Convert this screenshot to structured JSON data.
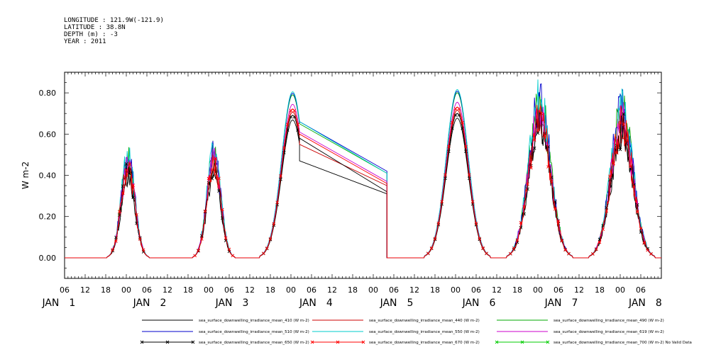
{
  "header": {
    "longitude": "LONGITUDE : 121.9W(-121.9)",
    "latitude": "LATITUDE : 38.8N",
    "depth": "DEPTH (m) : -3",
    "year": "YEAR : 2011"
  },
  "chart_data": {
    "type": "line",
    "title": "",
    "ylabel": "W m-2",
    "ylim": [
      -0.1,
      0.9
    ],
    "yticks": [
      0.0,
      0.2,
      0.4,
      0.6,
      0.8
    ],
    "ytick_labels": [
      "0.00",
      "0.20",
      "0.40",
      "0.60",
      "0.80"
    ],
    "xlim_hours": [
      0,
      174
    ],
    "x_hour_ticks": [
      "06",
      "12",
      "18",
      "00",
      "06",
      "12",
      "18",
      "00",
      "06",
      "12",
      "18",
      "00",
      "06",
      "12",
      "18",
      "00",
      "06",
      "12",
      "18",
      "00",
      "06",
      "12",
      "18",
      "00",
      "06",
      "12",
      "18",
      "00",
      "06"
    ],
    "x_day_labels": [
      "JAN 1",
      "JAN 2",
      "JAN 3",
      "JAN 4",
      "JAN 5",
      "JAN 6",
      "JAN 7",
      "JAN 8"
    ],
    "grid": false,
    "legend_position": "bottom",
    "days": [
      {
        "center": 18.5,
        "peak": 0.46,
        "width": 5,
        "spiky": true
      },
      {
        "center": 43.5,
        "peak": 0.48,
        "width": 5,
        "spiky": true
      },
      {
        "center": 66.5,
        "peak": 0.76,
        "width": 8,
        "spiky": false
      },
      {
        "center": 114.5,
        "peak": 0.77,
        "width": 8,
        "spiky": false
      },
      {
        "center": 138.5,
        "peak": 0.72,
        "width": 8,
        "spiky": true
      },
      {
        "center": 162.5,
        "peak": 0.68,
        "width": 8,
        "spiky": true
      }
    ],
    "gap": {
      "start_hour": 68.5,
      "end_hour": 94.0
    },
    "series": [
      {
        "name": "sea_surface_downwelling_irradiance_mean_410 (W m-2)",
        "color": "#000000",
        "scale": 0.88,
        "gap_start": 0.47,
        "gap_end": 0.31,
        "marker": false
      },
      {
        "name": "sea_surface_downwelling_irradiance_mean_440 (W m-2)",
        "color": "#cc0000",
        "scale": 0.93,
        "gap_start": 0.55,
        "gap_end": 0.35,
        "marker": false
      },
      {
        "name": "sea_surface_downwelling_irradiance_mean_490 (W m-2)",
        "color": "#00aa00",
        "scale": 1.04,
        "gap_start": 0.65,
        "gap_end": 0.41,
        "marker": false
      },
      {
        "name": "sea_surface_downwelling_irradiance_mean_510 (W m-2)",
        "color": "#0000cc",
        "scale": 1.05,
        "gap_start": 0.66,
        "gap_end": 0.42,
        "marker": false
      },
      {
        "name": "sea_surface_downwelling_irradiance_mean_550 (W m-2)",
        "color": "#00cccc",
        "scale": 1.06,
        "gap_start": 0.66,
        "gap_end": 0.41,
        "marker": false
      },
      {
        "name": "sea_surface_downwelling_irradiance_mean_619 (W m-2)",
        "color": "#cc00cc",
        "scale": 0.98,
        "gap_start": 0.61,
        "gap_end": 0.37,
        "marker": false
      },
      {
        "name": "sea_surface_downwelling_irradiance_mean_650 (W m-2)",
        "color": "#000000",
        "scale": 0.91,
        "gap_start": 0.58,
        "gap_end": 0.32,
        "marker": true
      },
      {
        "name": "sea_surface_downwelling_irradiance_mean_670 (W m-2)",
        "color": "#ff0000",
        "scale": 0.95,
        "gap_start": 0.6,
        "gap_end": 0.36,
        "marker": true
      },
      {
        "name": "sea_surface_downwelling_irradiance_mean_700 (W m-2) No Valid Data",
        "color": "#00cc00",
        "scale": 0,
        "gap_start": 0,
        "gap_end": 0,
        "marker": true
      }
    ]
  }
}
